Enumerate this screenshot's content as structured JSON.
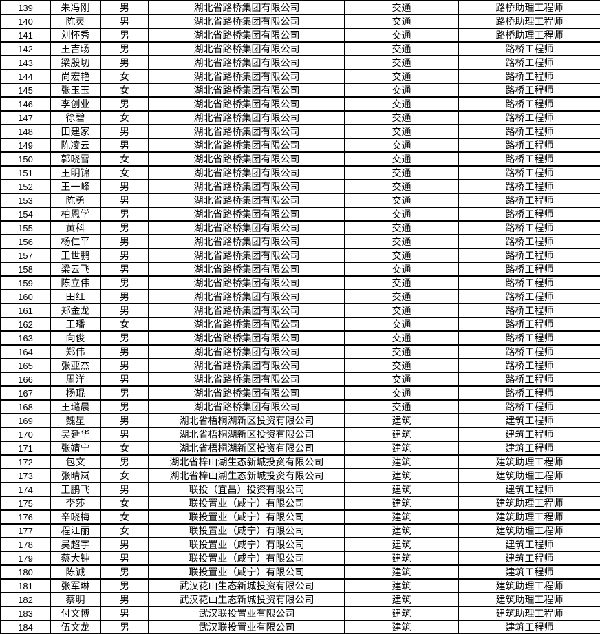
{
  "colors": {
    "border": "#000000",
    "text": "#000000",
    "background": "#ffffff"
  },
  "table": {
    "column_keys": [
      "number",
      "name",
      "gender",
      "company",
      "category",
      "title"
    ],
    "rows": [
      [
        "139",
        "朱冯刚",
        "男",
        "湖北省路桥集团有限公司",
        "交通",
        "路桥助理工程师"
      ],
      [
        "140",
        "陈灵",
        "男",
        "湖北省路桥集团有限公司",
        "交通",
        "路桥助理工程师"
      ],
      [
        "141",
        "刘怀秀",
        "男",
        "湖北省路桥集团有限公司",
        "交通",
        "路桥助理工程师"
      ],
      [
        "142",
        "王吉旸",
        "男",
        "湖北省路桥集团有限公司",
        "交通",
        "路桥工程师"
      ],
      [
        "143",
        "梁殷切",
        "男",
        "湖北省路桥集团有限公司",
        "交通",
        "路桥工程师"
      ],
      [
        "144",
        "尚宏艳",
        "女",
        "湖北省路桥集团有限公司",
        "交通",
        "路桥工程师"
      ],
      [
        "145",
        "张玉玉",
        "女",
        "湖北省路桥集团有限公司",
        "交通",
        "路桥工程师"
      ],
      [
        "146",
        "李创业",
        "男",
        "湖北省路桥集团有限公司",
        "交通",
        "路桥工程师"
      ],
      [
        "147",
        "徐碧",
        "女",
        "湖北省路桥集团有限公司",
        "交通",
        "路桥工程师"
      ],
      [
        "148",
        "田建家",
        "男",
        "湖北省路桥集团有限公司",
        "交通",
        "路桥工程师"
      ],
      [
        "149",
        "陈凌云",
        "男",
        "湖北省路桥集团有限公司",
        "交通",
        "路桥工程师"
      ],
      [
        "150",
        "郭晓雪",
        "女",
        "湖北省路桥集团有限公司",
        "交通",
        "路桥工程师"
      ],
      [
        "151",
        "王明锦",
        "女",
        "湖北省路桥集团有限公司",
        "交通",
        "路桥工程师"
      ],
      [
        "152",
        "王一峰",
        "男",
        "湖北省路桥集团有限公司",
        "交通",
        "路桥工程师"
      ],
      [
        "153",
        "陈勇",
        "男",
        "湖北省路桥集团有限公司",
        "交通",
        "路桥工程师"
      ],
      [
        "154",
        "柏恩学",
        "男",
        "湖北省路桥集团有限公司",
        "交通",
        "路桥工程师"
      ],
      [
        "155",
        "黄科",
        "男",
        "湖北省路桥集团有限公司",
        "交通",
        "路桥工程师"
      ],
      [
        "156",
        "杨仁平",
        "男",
        "湖北省路桥集团有限公司",
        "交通",
        "路桥工程师"
      ],
      [
        "157",
        "王世鹏",
        "男",
        "湖北省路桥集团有限公司",
        "交通",
        "路桥工程师"
      ],
      [
        "158",
        "梁云飞",
        "男",
        "湖北省路桥集团有限公司",
        "交通",
        "路桥工程师"
      ],
      [
        "159",
        "陈立伟",
        "男",
        "湖北省路桥集团有限公司",
        "交通",
        "路桥工程师"
      ],
      [
        "160",
        "田红",
        "男",
        "湖北省路桥集团有限公司",
        "交通",
        "路桥工程师"
      ],
      [
        "161",
        "郑金龙",
        "男",
        "湖北省路桥集团有限公司",
        "交通",
        "路桥工程师"
      ],
      [
        "162",
        "王璠",
        "女",
        "湖北省路桥集团有限公司",
        "交通",
        "路桥工程师"
      ],
      [
        "163",
        "向俊",
        "男",
        "湖北省路桥集团有限公司",
        "交通",
        "路桥工程师"
      ],
      [
        "164",
        "郑伟",
        "男",
        "湖北省路桥集团有限公司",
        "交通",
        "路桥工程师"
      ],
      [
        "165",
        "张亚杰",
        "男",
        "湖北省路桥集团有限公司",
        "交通",
        "路桥工程师"
      ],
      [
        "166",
        "周洋",
        "男",
        "湖北省路桥集团有限公司",
        "交通",
        "路桥工程师"
      ],
      [
        "167",
        "杨琨",
        "男",
        "湖北省路桥集团有限公司",
        "交通",
        "路桥工程师"
      ],
      [
        "168",
        "王璐晨",
        "男",
        "湖北省路桥集团有限公司",
        "交通",
        "路桥工程师"
      ],
      [
        "169",
        "魏星",
        "男",
        "湖北省梧桐湖新区投资有限公司",
        "建筑",
        "建筑工程师"
      ],
      [
        "170",
        "吴延华",
        "男",
        "湖北省梧桐湖新区投资有限公司",
        "建筑",
        "建筑工程师"
      ],
      [
        "171",
        "张婧宁",
        "女",
        "湖北省梧桐湖新区投资有限公司",
        "建筑",
        "建筑工程师"
      ],
      [
        "172",
        "包文",
        "男",
        "湖北省梓山湖生态新城投资有限公司",
        "建筑",
        "建筑助理工程师"
      ],
      [
        "173",
        "张晴岚",
        "女",
        "湖北省梓山湖生态新城投资有限公司",
        "建筑",
        "建筑助理工程师"
      ],
      [
        "174",
        "王鹏飞",
        "男",
        "联投（宜昌）投资有限公司",
        "建筑",
        "建筑工程师"
      ],
      [
        "175",
        "李莎",
        "女",
        "联投置业（咸宁）有限公司",
        "建筑",
        "建筑助理工程师"
      ],
      [
        "176",
        "辛晓梅",
        "女",
        "联投置业（咸宁）有限公司",
        "建筑",
        "建筑助理工程师"
      ],
      [
        "177",
        "程江丽",
        "女",
        "联投置业（咸宁）有限公司",
        "建筑",
        "建筑助理工程师"
      ],
      [
        "178",
        "吴超宇",
        "男",
        "联投置业（咸宁）有限公司",
        "建筑",
        "建筑工程师"
      ],
      [
        "179",
        "蔡大钟",
        "男",
        "联投置业（咸宁）有限公司",
        "建筑",
        "建筑工程师"
      ],
      [
        "180",
        "陈诚",
        "男",
        "联投置业（咸宁）有限公司",
        "建筑",
        "建筑工程师"
      ],
      [
        "181",
        "张军琳",
        "男",
        "武汉花山生态新城投资有限公司",
        "建筑",
        "建筑助理工程师"
      ],
      [
        "182",
        "蔡明",
        "男",
        "武汉花山生态新城投资有限公司",
        "建筑",
        "建筑助理工程师"
      ],
      [
        "183",
        "付文博",
        "男",
        "武汉联投置业有限公司",
        "建筑",
        "建筑助理工程师"
      ],
      [
        "184",
        "伍文龙",
        "男",
        "武汉联投置业有限公司",
        "建筑",
        "建筑工程师"
      ]
    ]
  }
}
